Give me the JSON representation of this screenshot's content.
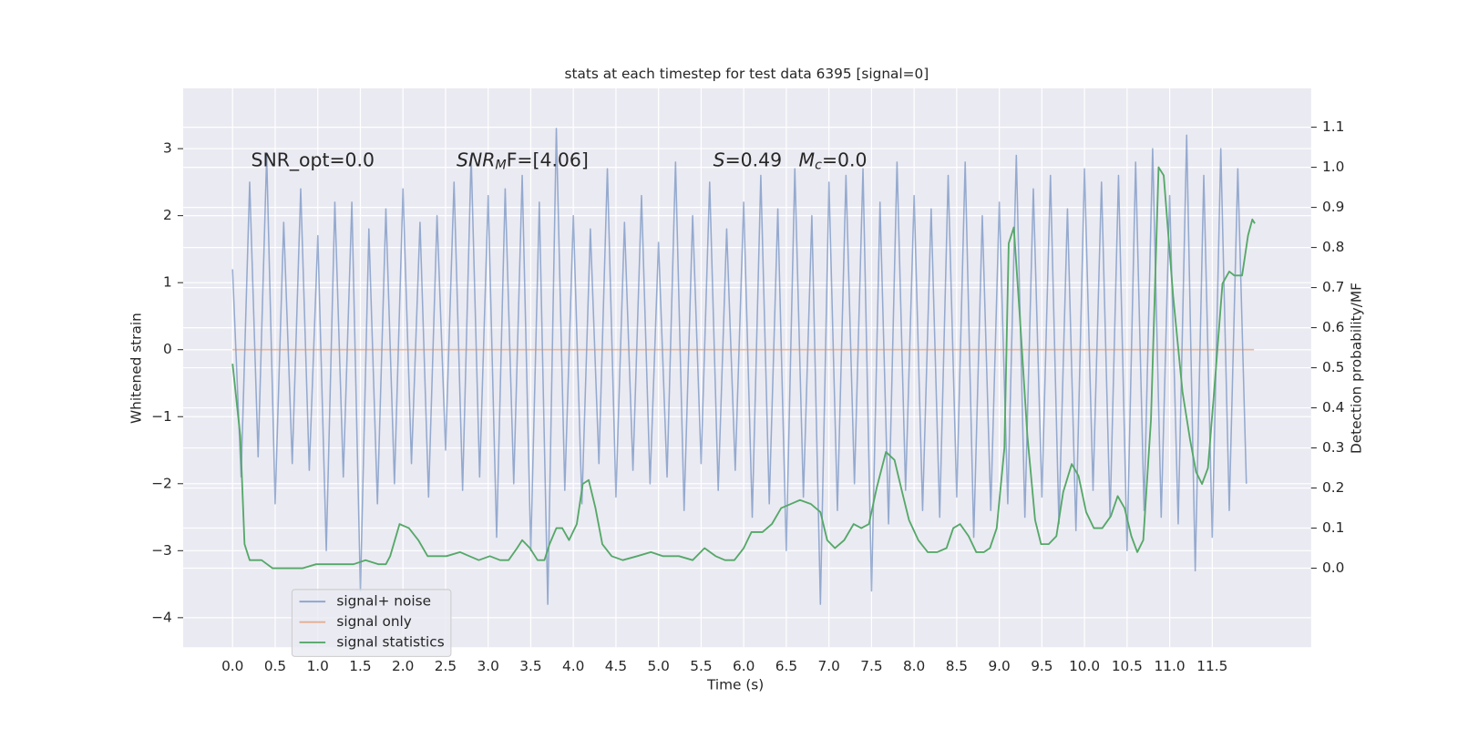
{
  "chart_data": {
    "type": "line",
    "title": "stats at each timestep for test data 6395 [signal=0]",
    "xlabel": "Time (s)",
    "ylabel": "Whitened strain",
    "y2label": "Detection probability/MF",
    "annotations": [
      [
        "SNR_opt=0.0"
      ],
      [
        "SNR",
        "M",
        "F=[4.06]"
      ],
      [
        "S",
        "=0.49"
      ],
      [
        "M",
        "c",
        "=0.0"
      ]
    ],
    "xlim": [
      -0.58,
      12.66
    ],
    "xticks": [
      {
        "value": 0,
        "label": "0.0"
      },
      0.5,
      {
        "value": 1,
        "label": "1.0"
      },
      1.5,
      {
        "value": 2,
        "label": "2.0"
      },
      2.5,
      {
        "value": 3,
        "label": "3.0"
      },
      3.5,
      {
        "value": 4,
        "label": "4.0"
      },
      4.5,
      {
        "value": 5,
        "label": "5.0"
      },
      5.5,
      {
        "value": 6,
        "label": "6.0"
      },
      6.5,
      {
        "value": 7,
        "label": "7.0"
      },
      7.5,
      {
        "value": 8,
        "label": "8.0"
      },
      8.5,
      {
        "value": 9,
        "label": "9.0"
      },
      9.5,
      {
        "value": 10,
        "label": "10.0"
      },
      10.5,
      {
        "value": 11,
        "label": "11.0"
      },
      11.5
    ],
    "ylim": [
      -4.44,
      3.9
    ],
    "yticks": [
      {
        "value": -4,
        "label": "−4"
      },
      {
        "value": -3,
        "label": "−3"
      },
      {
        "value": -2,
        "label": "−2"
      },
      {
        "value": -1,
        "label": "−1"
      },
      0,
      1,
      2,
      3
    ],
    "y2lim": [
      -0.197,
      1.197
    ],
    "y2ticks": [
      {
        "value": 0,
        "label": "0.0"
      },
      0.1,
      0.2,
      0.3,
      0.4,
      0.5,
      0.6,
      0.7,
      0.8,
      0.9,
      {
        "value": 1,
        "label": "1.0"
      },
      1.1
    ],
    "grid": true,
    "legend": "lower left",
    "series": [
      {
        "name": "signal+ noise",
        "color": "#4c72b0",
        "x": [
          0,
          0.1,
          0.2,
          0.3,
          0.4,
          0.5,
          0.6,
          0.7,
          0.8,
          0.9,
          1,
          1.1,
          1.2,
          1.3,
          1.4,
          1.5,
          1.6,
          1.7,
          1.8,
          1.9,
          2,
          2.1,
          2.2,
          2.3,
          2.4,
          2.5,
          2.6,
          2.7,
          2.8,
          2.9,
          3,
          3.1,
          3.2,
          3.3,
          3.4,
          3.5,
          3.6,
          3.7,
          3.8,
          3.9,
          4,
          4.1,
          4.2,
          4.3,
          4.4,
          4.5,
          4.6,
          4.7,
          4.8,
          4.9,
          5,
          5.1,
          5.2,
          5.3,
          5.4,
          5.5,
          5.6,
          5.7,
          5.8,
          5.9,
          6,
          6.1,
          6.2,
          6.3,
          6.4,
          6.5,
          6.6,
          6.7,
          6.8,
          6.9,
          7,
          7.1,
          7.2,
          7.3,
          7.4,
          7.5,
          7.6,
          7.7,
          7.8,
          7.9,
          8,
          8.1,
          8.2,
          8.3,
          8.4,
          8.5,
          8.6,
          8.7,
          8.8,
          8.9,
          9,
          9.1,
          9.2,
          9.3,
          9.4,
          9.5,
          9.6,
          9.7,
          9.8,
          9.9,
          10,
          10.1,
          10.2,
          10.3,
          10.4,
          10.5,
          10.6,
          10.7,
          10.8,
          10.9,
          11,
          11.1,
          11.2,
          11.3,
          11.4,
          11.5,
          11.6,
          11.7,
          11.8,
          11.9
        ],
        "values": [
          1.2,
          -1.9,
          2.5,
          -1.6,
          2.9,
          -2.3,
          1.9,
          -1.7,
          2.4,
          -1.8,
          1.7,
          -3.0,
          2.2,
          -1.9,
          2.2,
          -3.6,
          1.8,
          -2.3,
          2.1,
          -2.0,
          2.4,
          -1.7,
          1.9,
          -2.2,
          2.0,
          -1.5,
          2.5,
          -2.1,
          2.9,
          -1.9,
          2.3,
          -2.8,
          2.4,
          -2.0,
          2.6,
          -3.0,
          2.2,
          -3.8,
          3.3,
          -2.1,
          2.0,
          -2.3,
          1.8,
          -1.7,
          2.7,
          -2.2,
          1.9,
          -1.8,
          2.3,
          -2.0,
          1.6,
          -1.9,
          2.8,
          -2.4,
          2.0,
          -1.7,
          2.5,
          -2.1,
          1.8,
          -1.8,
          2.2,
          -2.5,
          2.6,
          -2.3,
          2.1,
          -3.0,
          2.7,
          -2.2,
          2.0,
          -3.8,
          2.5,
          -2.4,
          2.6,
          -2.0,
          2.7,
          -3.6,
          2.2,
          -2.6,
          2.8,
          -2.1,
          2.3,
          -2.4,
          2.1,
          -2.5,
          2.6,
          -2.2,
          2.8,
          -2.8,
          2.0,
          -2.4,
          2.2,
          -2.3,
          2.9,
          -2.5,
          2.4,
          -2.2,
          2.6,
          -2.6,
          2.1,
          -2.7,
          2.7,
          -2.1,
          2.5,
          -2.5,
          2.6,
          -3.0,
          2.8,
          -2.4,
          3.0,
          -2.5,
          2.3,
          -2.6,
          3.2,
          -3.3,
          2.6,
          -2.8,
          3.0,
          -2.4,
          2.7,
          -2.0
        ]
      },
      {
        "name": "signal only",
        "color": "#dd8452",
        "x": [
          0,
          11.99
        ],
        "values": [
          0,
          0
        ]
      },
      {
        "name": "signal statistics",
        "color": "#55a868",
        "axis": "y2",
        "x": [
          0,
          0.09,
          0.14,
          0.2,
          0.27,
          0.34,
          0.47,
          0.65,
          0.82,
          0.98,
          1.15,
          1.31,
          1.42,
          1.56,
          1.71,
          1.8,
          1.85,
          1.96,
          2.07,
          2.18,
          2.29,
          2.4,
          2.51,
          2.67,
          2.78,
          2.89,
          3.02,
          3.14,
          3.24,
          3.34,
          3.4,
          3.49,
          3.58,
          3.66,
          3.72,
          3.8,
          3.87,
          3.95,
          4.04,
          4.11,
          4.18,
          4.26,
          4.34,
          4.45,
          4.58,
          4.75,
          4.91,
          5.05,
          5.24,
          5.4,
          5.54,
          5.67,
          5.78,
          5.89,
          6.0,
          6.09,
          6.22,
          6.33,
          6.44,
          6.55,
          6.66,
          6.79,
          6.9,
          6.98,
          7.07,
          7.18,
          7.29,
          7.38,
          7.47,
          7.56,
          7.67,
          7.77,
          7.86,
          7.94,
          8.05,
          8.16,
          8.27,
          8.38,
          8.46,
          8.54,
          8.64,
          8.73,
          8.82,
          8.89,
          8.97,
          9.06,
          9.11,
          9.17,
          9.24,
          9.33,
          9.42,
          9.49,
          9.58,
          9.67,
          9.75,
          9.85,
          9.93,
          10.02,
          10.11,
          10.21,
          10.31,
          10.39,
          10.47,
          10.55,
          10.62,
          10.69,
          10.78,
          10.87,
          10.93,
          11.04,
          11.15,
          11.24,
          11.31,
          11.38,
          11.45,
          11.54,
          11.62,
          11.7,
          11.76,
          11.85,
          11.92,
          11.97,
          12.0
        ],
        "values": [
          0.51,
          0.33,
          0.06,
          0.02,
          0.02,
          0.02,
          0.0,
          0.0,
          0.0,
          0.01,
          0.01,
          0.01,
          0.01,
          0.02,
          0.01,
          0.01,
          0.03,
          0.11,
          0.1,
          0.07,
          0.03,
          0.03,
          0.03,
          0.04,
          0.03,
          0.02,
          0.03,
          0.02,
          0.02,
          0.05,
          0.07,
          0.05,
          0.02,
          0.02,
          0.06,
          0.1,
          0.1,
          0.07,
          0.11,
          0.21,
          0.22,
          0.15,
          0.06,
          0.03,
          0.02,
          0.03,
          0.04,
          0.03,
          0.03,
          0.02,
          0.05,
          0.03,
          0.02,
          0.02,
          0.05,
          0.09,
          0.09,
          0.11,
          0.15,
          0.16,
          0.17,
          0.16,
          0.14,
          0.07,
          0.05,
          0.07,
          0.11,
          0.1,
          0.11,
          0.2,
          0.29,
          0.27,
          0.19,
          0.12,
          0.07,
          0.04,
          0.04,
          0.05,
          0.1,
          0.11,
          0.08,
          0.04,
          0.04,
          0.05,
          0.1,
          0.3,
          0.81,
          0.85,
          0.63,
          0.33,
          0.12,
          0.06,
          0.06,
          0.08,
          0.19,
          0.26,
          0.23,
          0.14,
          0.1,
          0.1,
          0.13,
          0.18,
          0.15,
          0.08,
          0.04,
          0.07,
          0.37,
          1.0,
          0.98,
          0.68,
          0.44,
          0.32,
          0.24,
          0.21,
          0.25,
          0.49,
          0.71,
          0.74,
          0.73,
          0.73,
          0.83,
          0.87,
          0.86
        ]
      }
    ]
  }
}
